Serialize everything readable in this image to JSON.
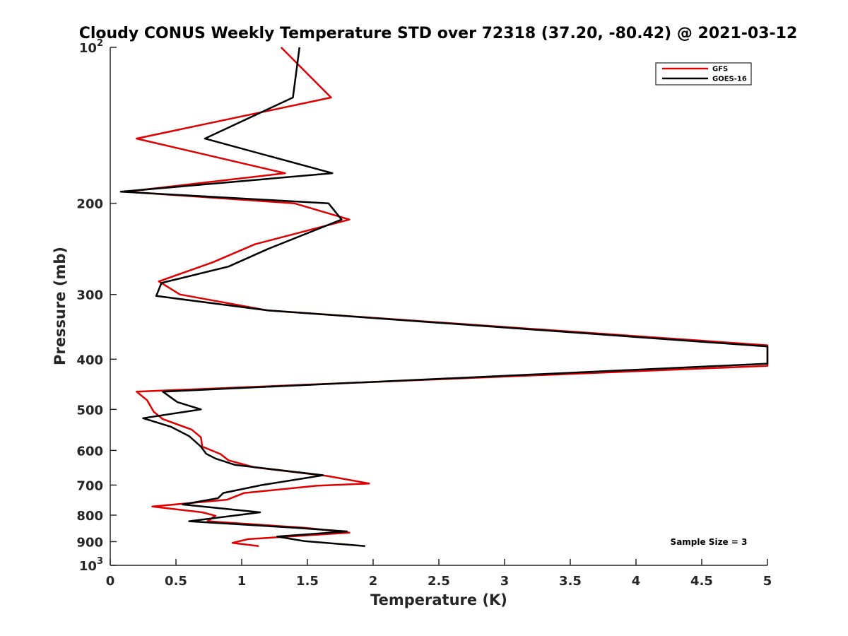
{
  "chart_data": {
    "type": "line",
    "title": "Cloudy CONUS Weekly Temperature STD over 72318 (37.20, -80.42) @ 2021-03-12",
    "xlabel": "Temperature (K)",
    "ylabel": "Pressure (mb)",
    "xlim": [
      0,
      5
    ],
    "ylim": [
      100,
      1000
    ],
    "yscale": "log",
    "y_reversed": true,
    "x_ticks": [
      {
        "value": 0,
        "label": "0"
      },
      {
        "value": 0.5,
        "label": "0.5"
      },
      {
        "value": 1,
        "label": "1"
      },
      {
        "value": 1.5,
        "label": "1.5"
      },
      {
        "value": 2,
        "label": "2"
      },
      {
        "value": 2.5,
        "label": "2.5"
      },
      {
        "value": 3,
        "label": "3"
      },
      {
        "value": 3.5,
        "label": "3.5"
      },
      {
        "value": 4,
        "label": "4"
      },
      {
        "value": 4.5,
        "label": "4.5"
      },
      {
        "value": 5,
        "label": "5"
      }
    ],
    "y_ticks": [
      {
        "value": 100,
        "label": "10",
        "sup": "2"
      },
      {
        "value": 200,
        "label": "200"
      },
      {
        "value": 300,
        "label": "300"
      },
      {
        "value": 400,
        "label": "400"
      },
      {
        "value": 500,
        "label": "500"
      },
      {
        "value": 600,
        "label": "600"
      },
      {
        "value": 700,
        "label": "700"
      },
      {
        "value": 800,
        "label": "800"
      },
      {
        "value": 900,
        "label": "900"
      },
      {
        "value": 1000,
        "label": "10",
        "sup": "3"
      }
    ],
    "legend_position": "top-right",
    "annotation": "Sample Size = 3",
    "series": [
      {
        "name": "GFS",
        "color": "#e00000",
        "points": [
          [
            1.3,
            100
          ],
          [
            1.68,
            125
          ],
          [
            0.2,
            150
          ],
          [
            1.33,
            175
          ],
          [
            0.12,
            190
          ],
          [
            1.4,
            200
          ],
          [
            1.82,
            215
          ],
          [
            1.1,
            240
          ],
          [
            0.78,
            260
          ],
          [
            0.37,
            283
          ],
          [
            0.53,
            300
          ],
          [
            1.2,
            322
          ],
          [
            5,
            376
          ],
          [
            5,
            412
          ],
          [
            0.2,
            462
          ],
          [
            0.28,
            480
          ],
          [
            0.33,
            505
          ],
          [
            0.4,
            522
          ],
          [
            0.62,
            547
          ],
          [
            0.69,
            566
          ],
          [
            0.7,
            590
          ],
          [
            0.84,
            610
          ],
          [
            0.9,
            627
          ],
          [
            1.1,
            647
          ],
          [
            1.65,
            672
          ],
          [
            1.97,
            695
          ],
          [
            1.57,
            702
          ],
          [
            1.02,
            725
          ],
          [
            0.89,
            747
          ],
          [
            0.32,
            770
          ],
          [
            0.7,
            790
          ],
          [
            0.8,
            802
          ],
          [
            0.74,
            822
          ],
          [
            1.5,
            847
          ],
          [
            1.82,
            865
          ],
          [
            1.05,
            890
          ],
          [
            0.93,
            905
          ],
          [
            1.13,
            918
          ]
        ]
      },
      {
        "name": "GOES-16",
        "color": "#000000",
        "points": [
          [
            1.44,
            100
          ],
          [
            1.39,
            125
          ],
          [
            0.72,
            150
          ],
          [
            1.69,
            175
          ],
          [
            0.08,
            190
          ],
          [
            1.66,
            200
          ],
          [
            1.76,
            215
          ],
          [
            1.2,
            245
          ],
          [
            0.9,
            265
          ],
          [
            0.39,
            285
          ],
          [
            0.35,
            302
          ],
          [
            1.2,
            322
          ],
          [
            5,
            378
          ],
          [
            5,
            408
          ],
          [
            0.4,
            462
          ],
          [
            0.51,
            484
          ],
          [
            0.69,
            500
          ],
          [
            0.25,
            520
          ],
          [
            0.46,
            540
          ],
          [
            0.6,
            563
          ],
          [
            0.69,
            590
          ],
          [
            0.73,
            609
          ],
          [
            0.8,
            622
          ],
          [
            0.95,
            640
          ],
          [
            1.62,
            670
          ],
          [
            1.15,
            700
          ],
          [
            0.86,
            725
          ],
          [
            0.82,
            742
          ],
          [
            0.55,
            763
          ],
          [
            1.14,
            790
          ],
          [
            0.6,
            822
          ],
          [
            1.37,
            845
          ],
          [
            1.8,
            860
          ],
          [
            1.27,
            880
          ],
          [
            1.48,
            898
          ],
          [
            1.94,
            918
          ]
        ]
      }
    ]
  }
}
